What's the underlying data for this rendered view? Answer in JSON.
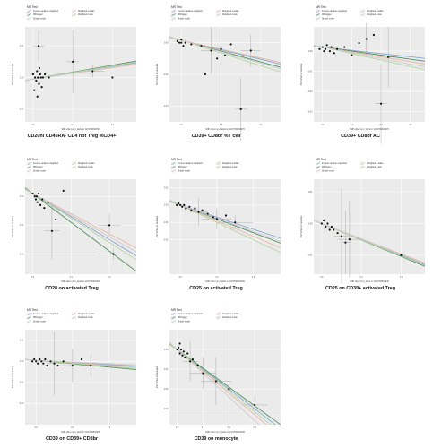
{
  "legend": {
    "title": "MR Test",
    "methods": [
      {
        "name": "Inverse variance weighted",
        "color": "#8aa7cf"
      },
      {
        "name": "MR Egger",
        "color": "#4f8f5b"
      },
      {
        "name": "Simple mode",
        "color": "#cccccc"
      },
      {
        "name": "Weighted median",
        "color": "#e7b8a8"
      },
      {
        "name": "Weighted mode",
        "color": "#b7d6a4"
      }
    ]
  },
  "ylabel": "SNP effect on outcome",
  "chart_data": [
    {
      "type": "scatter",
      "title": "CD20hi CD45RA- CD4 not Treg %CD4+",
      "xlabel": "SNP effect on 2_kkdn or GCST90001511",
      "xticks": [
        "0.0",
        "0.1",
        "0.2"
      ],
      "yticks": [
        "0.01",
        "0.00",
        "-0.01"
      ],
      "xlim": [
        -0.02,
        0.26
      ],
      "ylim": [
        -0.014,
        0.016
      ],
      "points": [
        [
          0.0,
          0.001
        ],
        [
          0.005,
          0.0
        ],
        [
          0.008,
          -0.001
        ],
        [
          0.01,
          0.002
        ],
        [
          0.012,
          0.0
        ],
        [
          0.015,
          -0.002
        ],
        [
          0.018,
          0.001
        ],
        [
          0.02,
          0.0
        ],
        [
          0.022,
          -0.003
        ],
        [
          0.025,
          0.0
        ],
        [
          0.003,
          -0.004
        ],
        [
          0.014,
          0.01
        ],
        [
          0.011,
          -0.006
        ],
        [
          0.016,
          0.003
        ],
        [
          0.03,
          0.001
        ],
        [
          0.04,
          0.0
        ],
        [
          0.1,
          0.005
        ],
        [
          0.15,
          0.002
        ],
        [
          0.2,
          0.0
        ]
      ],
      "errors": [
        [
          0.014,
          0.01,
          0.015,
          0.005
        ],
        [
          0.1,
          0.005,
          0.015,
          0.01
        ],
        [
          0.15,
          0.002,
          0.03,
          0.002
        ]
      ],
      "lines": [
        {
          "method": "Inverse variance weighted",
          "slope": 0.02
        },
        {
          "method": "MR Egger",
          "slope": 0.022
        },
        {
          "method": "Weighted median",
          "slope": 0.018
        },
        {
          "method": "Weighted mode",
          "slope": 0.021
        },
        {
          "method": "Simple mode",
          "slope": 0.019
        }
      ],
      "intercept": -0.0005
    },
    {
      "type": "scatter",
      "title": "CD39+ CD8br %T cell",
      "xlabel": "SNP effect on 2_kkdn or GCST90001870",
      "xticks": [
        "0.0",
        "0.2",
        "0.4"
      ],
      "yticks": [
        "0.00",
        "-0.02",
        "-0.04"
      ],
      "xlim": [
        -0.06,
        0.5
      ],
      "ylim": [
        -0.05,
        0.01
      ],
      "points": [
        [
          -0.02,
          0.001
        ],
        [
          -0.01,
          0.0
        ],
        [
          0.0,
          0.0
        ],
        [
          0.01,
          -0.002
        ],
        [
          0.02,
          0.0
        ],
        [
          0.0,
          0.002
        ],
        [
          0.1,
          -0.002
        ],
        [
          0.15,
          -0.005
        ],
        [
          0.18,
          -0.01
        ],
        [
          0.2,
          -0.004
        ],
        [
          0.22,
          -0.008
        ],
        [
          0.25,
          -0.001
        ],
        [
          0.3,
          -0.042
        ],
        [
          0.12,
          -0.02
        ],
        [
          0.35,
          -0.005
        ],
        [
          0.05,
          -0.001
        ]
      ],
      "errors": [
        [
          0.15,
          -0.005,
          0.05,
          0.015
        ],
        [
          0.3,
          -0.042,
          0.03,
          0.02
        ],
        [
          0.35,
          -0.005,
          0.05,
          0.01
        ]
      ],
      "lines": [
        {
          "method": "Inverse variance weighted",
          "slope": -0.03
        },
        {
          "method": "MR Egger",
          "slope": -0.034
        },
        {
          "method": "Weighted median",
          "slope": -0.028
        },
        {
          "method": "Weighted mode",
          "slope": -0.04
        },
        {
          "method": "Simple mode",
          "slope": -0.036
        }
      ],
      "intercept": 0.0015
    },
    {
      "type": "scatter",
      "title": "CD39+ CD8br AC",
      "xlabel": "SNP effect on 2_kkdn or GCST90001872",
      "xticks": [
        "0.0",
        "0.2",
        "0.4",
        "0.6"
      ],
      "yticks": [
        "0.00",
        "-0.01",
        "-0.02",
        "-0.03"
      ],
      "xlim": [
        -0.06,
        0.7
      ],
      "ylim": [
        -0.035,
        0.012
      ],
      "points": [
        [
          -0.02,
          0.001
        ],
        [
          0.0,
          0.002
        ],
        [
          0.01,
          0.0
        ],
        [
          0.02,
          0.001
        ],
        [
          0.03,
          0.003
        ],
        [
          0.05,
          0.0
        ],
        [
          0.06,
          0.002
        ],
        [
          0.08,
          -0.001
        ],
        [
          0.1,
          0.001
        ],
        [
          0.15,
          0.002
        ],
        [
          0.2,
          -0.002
        ],
        [
          0.3,
          0.006
        ],
        [
          0.35,
          0.008
        ],
        [
          0.4,
          -0.026
        ],
        [
          0.45,
          -0.003
        ],
        [
          0.25,
          0.004
        ]
      ],
      "errors": [
        [
          0.3,
          0.006,
          0.06,
          0.008
        ],
        [
          0.4,
          -0.026,
          0.04,
          0.02
        ],
        [
          0.45,
          -0.003,
          0.05,
          0.015
        ]
      ],
      "lines": [
        {
          "method": "Inverse variance weighted",
          "slope": -0.008
        },
        {
          "method": "MR Egger",
          "slope": -0.01
        },
        {
          "method": "Weighted median",
          "slope": -0.012
        },
        {
          "method": "Weighted mode",
          "slope": -0.016
        },
        {
          "method": "Simple mode",
          "slope": -0.014
        }
      ],
      "intercept": 0.002
    },
    {
      "type": "scatter",
      "title": "CD28 on activated Treg",
      "xlabel": "SNP effect on 2_kkdn or GCST90001948",
      "xticks": [
        "0.0",
        "0.1",
        "0.2"
      ],
      "yticks": [
        "0.00",
        "-0.01",
        "-0.02"
      ],
      "xlim": [
        -0.02,
        0.27
      ],
      "ylim": [
        -0.027,
        0.006
      ],
      "points": [
        [
          0.0,
          0.001
        ],
        [
          0.005,
          0.0
        ],
        [
          0.008,
          -0.001
        ],
        [
          0.01,
          0.0
        ],
        [
          0.012,
          -0.002
        ],
        [
          0.015,
          0.001
        ],
        [
          0.02,
          -0.003
        ],
        [
          0.025,
          -0.001
        ],
        [
          0.03,
          -0.004
        ],
        [
          0.04,
          -0.002
        ],
        [
          0.05,
          -0.012
        ],
        [
          0.06,
          -0.008
        ],
        [
          0.08,
          0.002
        ],
        [
          0.2,
          -0.01
        ],
        [
          0.21,
          -0.02
        ]
      ],
      "errors": [
        [
          0.05,
          -0.012,
          0.02,
          0.01
        ],
        [
          0.2,
          -0.01,
          0.03,
          0.004
        ],
        [
          0.21,
          -0.02,
          0.04,
          0.002
        ]
      ],
      "lines": [
        {
          "method": "Inverse variance weighted",
          "slope": -0.08
        },
        {
          "method": "MR Egger",
          "slope": -0.1
        },
        {
          "method": "Weighted median",
          "slope": -0.07
        },
        {
          "method": "Weighted mode",
          "slope": -0.085
        },
        {
          "method": "Simple mode",
          "slope": -0.075
        }
      ],
      "intercept": 0.001
    },
    {
      "type": "scatter",
      "title": "CD25 on activated Treg",
      "xlabel": "SNP effect on 2_kkdn or GCST90001946",
      "xticks": [
        "0.0",
        "0.2",
        "0.4"
      ],
      "yticks": [
        "0.01",
        "0.00",
        "-0.01",
        "-0.02"
      ],
      "xlim": [
        -0.06,
        0.55
      ],
      "ylim": [
        -0.04,
        0.015
      ],
      "points": [
        [
          -0.02,
          0.0
        ],
        [
          -0.01,
          0.001
        ],
        [
          0.0,
          0.0
        ],
        [
          0.01,
          -0.001
        ],
        [
          0.02,
          0.0
        ],
        [
          0.03,
          -0.002
        ],
        [
          0.05,
          -0.001
        ],
        [
          0.06,
          -0.003
        ],
        [
          0.08,
          -0.002
        ],
        [
          0.1,
          -0.004
        ],
        [
          0.12,
          -0.003
        ],
        [
          0.15,
          -0.005
        ],
        [
          0.18,
          -0.007
        ],
        [
          0.2,
          -0.008
        ],
        [
          0.25,
          -0.006
        ],
        [
          0.3,
          -0.01
        ]
      ],
      "errors": [
        [
          0.1,
          -0.004,
          0.05,
          0.008
        ],
        [
          0.2,
          -0.008,
          0.08,
          0.006
        ],
        [
          0.3,
          -0.01,
          0.1,
          0.004
        ]
      ],
      "lines": [
        {
          "method": "Inverse variance weighted",
          "slope": -0.035
        },
        {
          "method": "MR Egger",
          "slope": -0.04
        },
        {
          "method": "Weighted median",
          "slope": -0.045
        },
        {
          "method": "Weighted mode",
          "slope": -0.05
        },
        {
          "method": "Simple mode",
          "slope": -0.038
        }
      ],
      "intercept": 0.0
    },
    {
      "type": "scatter",
      "title": "CD25 on CD39+ activated Treg",
      "xlabel": "SNP effect on 2_kkdn or GCST90001940",
      "xticks": [
        "0.0",
        "0.1",
        "0.2"
      ],
      "yticks": [
        "0.01",
        "0.00",
        "-0.01"
      ],
      "xlim": [
        -0.02,
        0.26
      ],
      "ylim": [
        -0.016,
        0.014
      ],
      "points": [
        [
          0.0,
          0.0
        ],
        [
          0.005,
          0.001
        ],
        [
          0.01,
          -0.001
        ],
        [
          0.015,
          0.0
        ],
        [
          0.02,
          -0.002
        ],
        [
          0.025,
          -0.001
        ],
        [
          0.03,
          -0.002
        ],
        [
          0.04,
          -0.003
        ],
        [
          0.05,
          -0.004
        ],
        [
          0.06,
          -0.006
        ],
        [
          0.07,
          -0.005
        ],
        [
          0.2,
          -0.01
        ]
      ],
      "errors": [
        [
          0.05,
          -0.004,
          0.02,
          0.015
        ],
        [
          0.06,
          -0.006,
          0.01,
          0.01
        ],
        [
          0.07,
          -0.005,
          0.03,
          0.012
        ]
      ],
      "lines": [
        {
          "method": "Inverse variance weighted",
          "slope": -0.05
        },
        {
          "method": "MR Egger",
          "slope": -0.052
        },
        {
          "method": "Weighted median",
          "slope": -0.048
        },
        {
          "method": "Weighted mode",
          "slope": -0.051
        },
        {
          "method": "Simple mode",
          "slope": -0.049
        }
      ],
      "intercept": 0.0
    },
    {
      "type": "scatter",
      "title": "CD39 on CD39+ CD8br",
      "xlabel": "SNP effect on 2_kkdn or GCST90002039",
      "xticks": [
        "0.0",
        "0.2",
        "0.4"
      ],
      "yticks": [
        "0.01",
        "0.00",
        "-0.01",
        "-0.02"
      ],
      "xlim": [
        -0.06,
        0.55
      ],
      "ylim": [
        -0.03,
        0.015
      ],
      "points": [
        [
          -0.02,
          0.0
        ],
        [
          -0.01,
          0.001
        ],
        [
          0.0,
          0.0
        ],
        [
          0.01,
          -0.001
        ],
        [
          0.02,
          0.001
        ],
        [
          0.03,
          0.0
        ],
        [
          0.04,
          -0.001
        ],
        [
          0.05,
          0.001
        ],
        [
          0.06,
          -0.002
        ],
        [
          0.08,
          0.0
        ],
        [
          0.1,
          -0.001
        ],
        [
          0.12,
          -0.002
        ],
        [
          0.15,
          0.0
        ],
        [
          0.2,
          -0.002
        ],
        [
          0.25,
          0.001
        ],
        [
          0.3,
          -0.002
        ]
      ],
      "errors": [
        [
          0.1,
          -0.001,
          0.04,
          0.015
        ],
        [
          0.2,
          -0.002,
          0.06,
          0.008
        ],
        [
          0.3,
          -0.002,
          0.1,
          0.005
        ]
      ],
      "lines": [
        {
          "method": "Inverse variance weighted",
          "slope": -0.005
        },
        {
          "method": "MR Egger",
          "slope": -0.008
        },
        {
          "method": "Weighted median",
          "slope": -0.006
        },
        {
          "method": "Weighted mode",
          "slope": -0.007
        },
        {
          "method": "Simple mode",
          "slope": -0.004
        }
      ],
      "intercept": 0.0005
    },
    {
      "type": "scatter",
      "title": "CD39 on monocyte",
      "xlabel": "SNP effect on 2_kkdn or GCST90002048",
      "xticks": [
        "0.0",
        "0.1",
        "0.2",
        "0.3"
      ],
      "yticks": [
        "0.00",
        "-0.01",
        "-0.02",
        "-0.03"
      ],
      "xlim": [
        -0.03,
        0.4
      ],
      "ylim": [
        -0.038,
        0.01
      ],
      "points": [
        [
          0.0,
          0.0
        ],
        [
          0.005,
          0.001
        ],
        [
          0.01,
          -0.002
        ],
        [
          0.015,
          0.0
        ],
        [
          0.02,
          -0.003
        ],
        [
          0.025,
          -0.001
        ],
        [
          0.03,
          -0.004
        ],
        [
          0.04,
          -0.002
        ],
        [
          0.05,
          -0.006
        ],
        [
          0.06,
          -0.005
        ],
        [
          0.08,
          -0.008
        ],
        [
          0.1,
          -0.012
        ],
        [
          0.15,
          -0.016
        ],
        [
          0.2,
          -0.02
        ],
        [
          0.3,
          -0.028
        ],
        [
          0.01,
          0.003
        ]
      ],
      "errors": [
        [
          0.05,
          -0.006,
          0.03,
          0.01
        ],
        [
          0.1,
          -0.012,
          0.05,
          0.008
        ],
        [
          0.15,
          -0.016,
          0.06,
          0.012
        ],
        [
          0.3,
          -0.028,
          0.05,
          0.005
        ]
      ],
      "lines": [
        {
          "method": "Inverse variance weighted",
          "slope": -0.1
        },
        {
          "method": "MR Egger",
          "slope": -0.095
        },
        {
          "method": "Weighted median",
          "slope": -0.11
        },
        {
          "method": "Weighted mode",
          "slope": -0.105
        },
        {
          "method": "Simple mode",
          "slope": -0.12
        }
      ],
      "intercept": 0.0
    }
  ]
}
